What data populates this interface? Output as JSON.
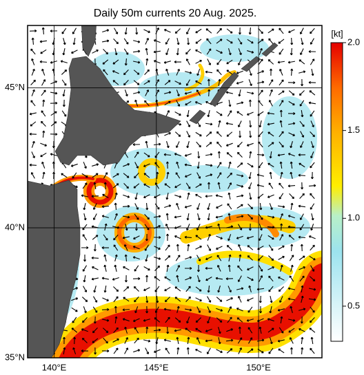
{
  "map": {
    "title": "Daily 50m currents 20 Aug. 2025.",
    "lon_range": [
      138.7,
      153.1
    ],
    "lat_range": [
      35,
      47.1
    ],
    "lon_ticks": [
      {
        "value": 140,
        "label": "140°E"
      },
      {
        "value": 145,
        "label": "145°E"
      },
      {
        "value": 150,
        "label": "150°E"
      }
    ],
    "lat_ticks": [
      {
        "value": 35,
        "label": "35°N"
      },
      {
        "value": 40,
        "label": "40°N"
      },
      {
        "value": 45,
        "label": "45°N"
      }
    ],
    "colorbar": {
      "unit": "[kt]",
      "range": [
        0.3,
        2.0
      ],
      "ticks": [
        0.5,
        {
          "value": 1.0,
          "label": "1.0"
        },
        1.5,
        {
          "value": 2.0,
          "label": "2.0"
        }
      ]
    }
  }
}
